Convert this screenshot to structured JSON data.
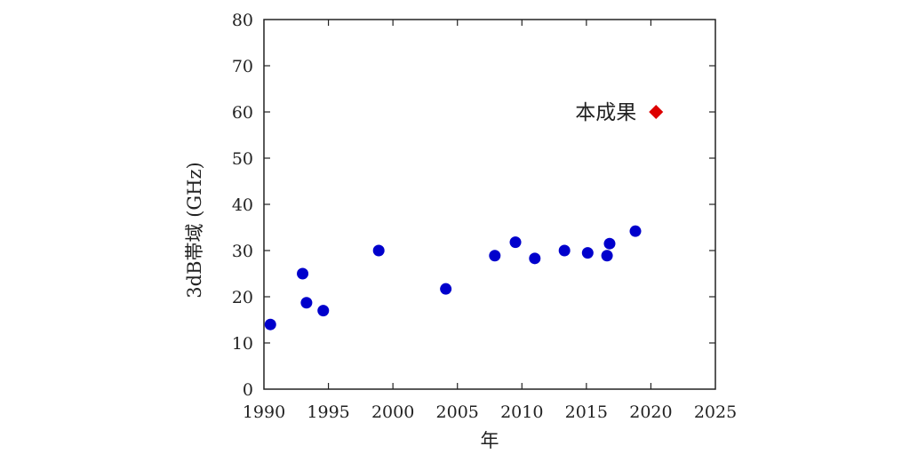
{
  "chart_data": {
    "type": "scatter",
    "xlabel": "年",
    "ylabel": "3dB帯域 (GHz)",
    "xlim": [
      1990,
      2025
    ],
    "ylim": [
      0,
      80
    ],
    "xticks": [
      1990,
      1995,
      2000,
      2005,
      2010,
      2015,
      2020,
      2025
    ],
    "yticks": [
      0,
      10,
      20,
      30,
      40,
      50,
      60,
      70,
      80
    ],
    "grid": false,
    "series": [
      {
        "color": "#0000cc",
        "marker": "circle",
        "points": [
          {
            "x": 1990.5,
            "y": 14
          },
          {
            "x": 1993.0,
            "y": 25
          },
          {
            "x": 1993.3,
            "y": 18.7
          },
          {
            "x": 1994.6,
            "y": 17
          },
          {
            "x": 1998.9,
            "y": 30
          },
          {
            "x": 2004.1,
            "y": 21.7
          },
          {
            "x": 2007.9,
            "y": 28.9
          },
          {
            "x": 2009.5,
            "y": 31.8
          },
          {
            "x": 2011.0,
            "y": 28.3
          },
          {
            "x": 2013.3,
            "y": 30
          },
          {
            "x": 2015.1,
            "y": 29.5
          },
          {
            "x": 2016.6,
            "y": 28.9
          },
          {
            "x": 2016.8,
            "y": 31.5
          },
          {
            "x": 2018.8,
            "y": 34.2
          }
        ]
      },
      {
        "name": "本成果",
        "color": "#dd0000",
        "marker": "diamond",
        "points": [
          {
            "x": 2020.4,
            "y": 60
          }
        ]
      }
    ],
    "annotations": [
      {
        "text": "本成果",
        "x": 2020.4,
        "y": 60,
        "position": "left"
      }
    ]
  }
}
